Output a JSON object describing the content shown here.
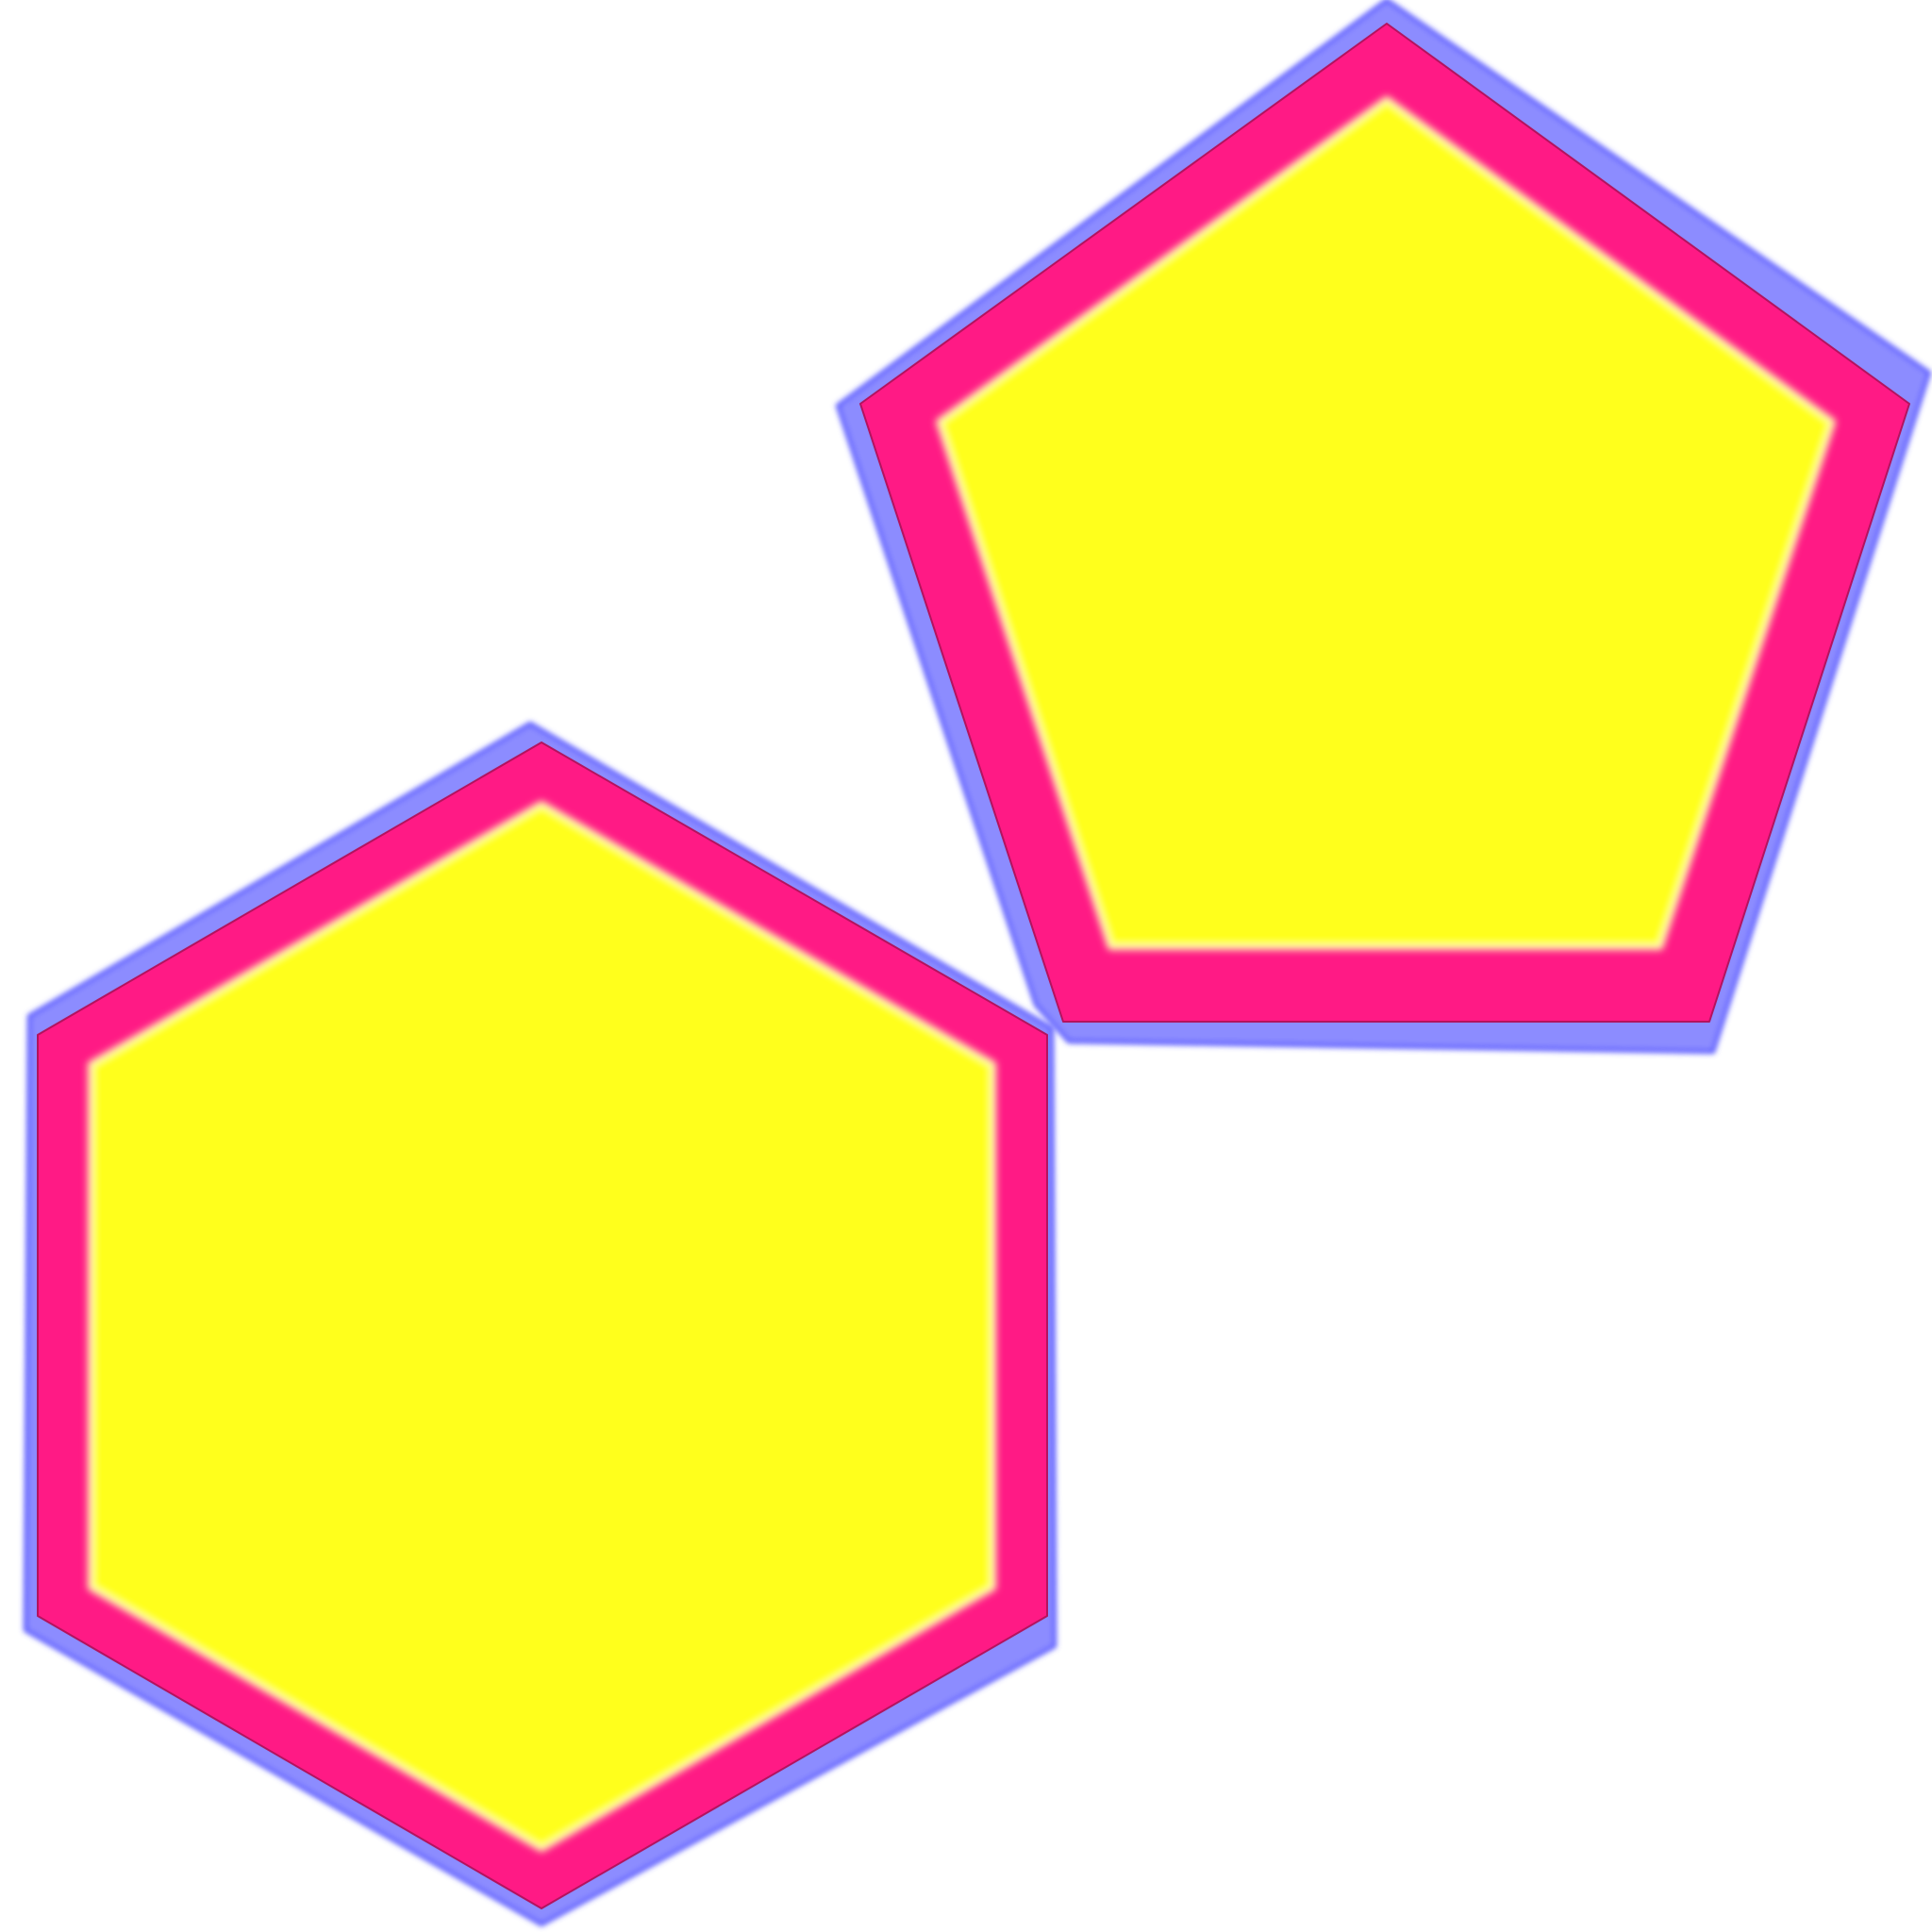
{
  "shapes": [
    {
      "name": "hexagon",
      "kind": "hexagon",
      "fill_color": "#ffff1a",
      "border_color": "#ff1a85",
      "glow_color": "#ff1ad1",
      "shadow_color": "#8c8cff",
      "shadow_edge_color": "#4d4dff"
    },
    {
      "name": "pentagon",
      "kind": "pentagon",
      "fill_color": "#ffff1a",
      "border_color": "#ff1a85",
      "glow_color": "#ff1ad1",
      "shadow_color": "#8c8cff",
      "shadow_edge_color": "#4d4dff"
    }
  ],
  "background_color": "#ffffff"
}
